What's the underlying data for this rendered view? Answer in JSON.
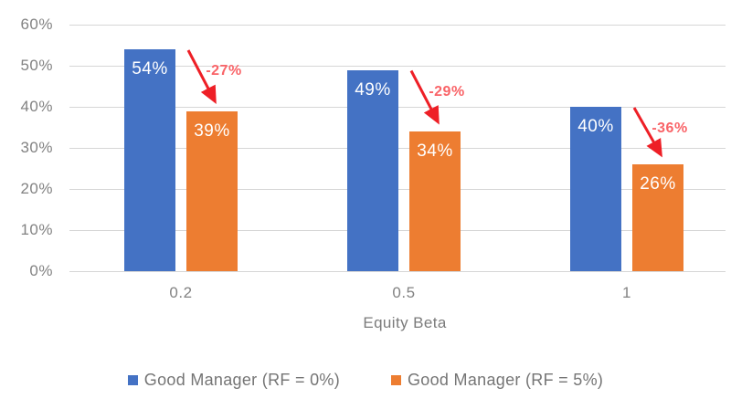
{
  "chart_data": {
    "type": "bar",
    "title": "",
    "xlabel": "Equity Beta",
    "ylabel": "",
    "categories": [
      "0.2",
      "0.5",
      "1"
    ],
    "series": [
      {
        "name": "Good Manager (RF = 0%)",
        "color": "#4472C4",
        "values": [
          54,
          49,
          40
        ],
        "data_labels": [
          "54%",
          "49%",
          "40%"
        ]
      },
      {
        "name": "Good Manager (RF = 5%)",
        "color": "#ED7D31",
        "values": [
          39,
          34,
          26
        ],
        "data_labels": [
          "39%",
          "34%",
          "26%"
        ]
      }
    ],
    "annotations": [
      {
        "category": "0.2",
        "label": "-27%"
      },
      {
        "category": "0.5",
        "label": "-29%"
      },
      {
        "category": "1",
        "label": "-36%"
      }
    ],
    "annotation_arrow_color": "#EE1F26",
    "annotation_text_color": "#F96468",
    "yticks": {
      "values": [
        0,
        10,
        20,
        30,
        40,
        50,
        60
      ],
      "labels": [
        "0%",
        "10%",
        "20%",
        "30%",
        "40%",
        "50%",
        "60%"
      ]
    },
    "ylim": [
      0,
      60
    ],
    "grid": true,
    "gridline_color": "#D6D6D6",
    "axis_text_color": "#828282",
    "data_label_color": "#FFFFFF",
    "legend_position": "bottom",
    "legend_text_color": "#757575"
  }
}
